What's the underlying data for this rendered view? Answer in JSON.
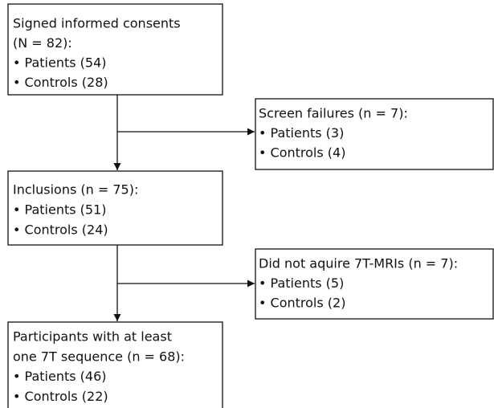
{
  "nodes": [
    {
      "lines": [
        "Signed informed consents",
        "(N = 82):",
        "• Patients (54)",
        "• Controls (28)"
      ]
    },
    {
      "lines": [
        "Screen failures (n = 7):",
        "• Patients (3)",
        "• Controls (4)"
      ]
    },
    {
      "lines": [
        "Inclusions (n = 75):",
        "• Patients (51)",
        "• Controls (24)"
      ]
    },
    {
      "lines": [
        "Did not aquire 7T-MRIs (n = 7):",
        "• Patients (5)",
        "• Controls (2)"
      ]
    },
    {
      "lines": [
        "Participants with at least",
        "one 7T sequence (n = 68):",
        "• Patients (46)",
        "• Controls (22)"
      ]
    }
  ]
}
